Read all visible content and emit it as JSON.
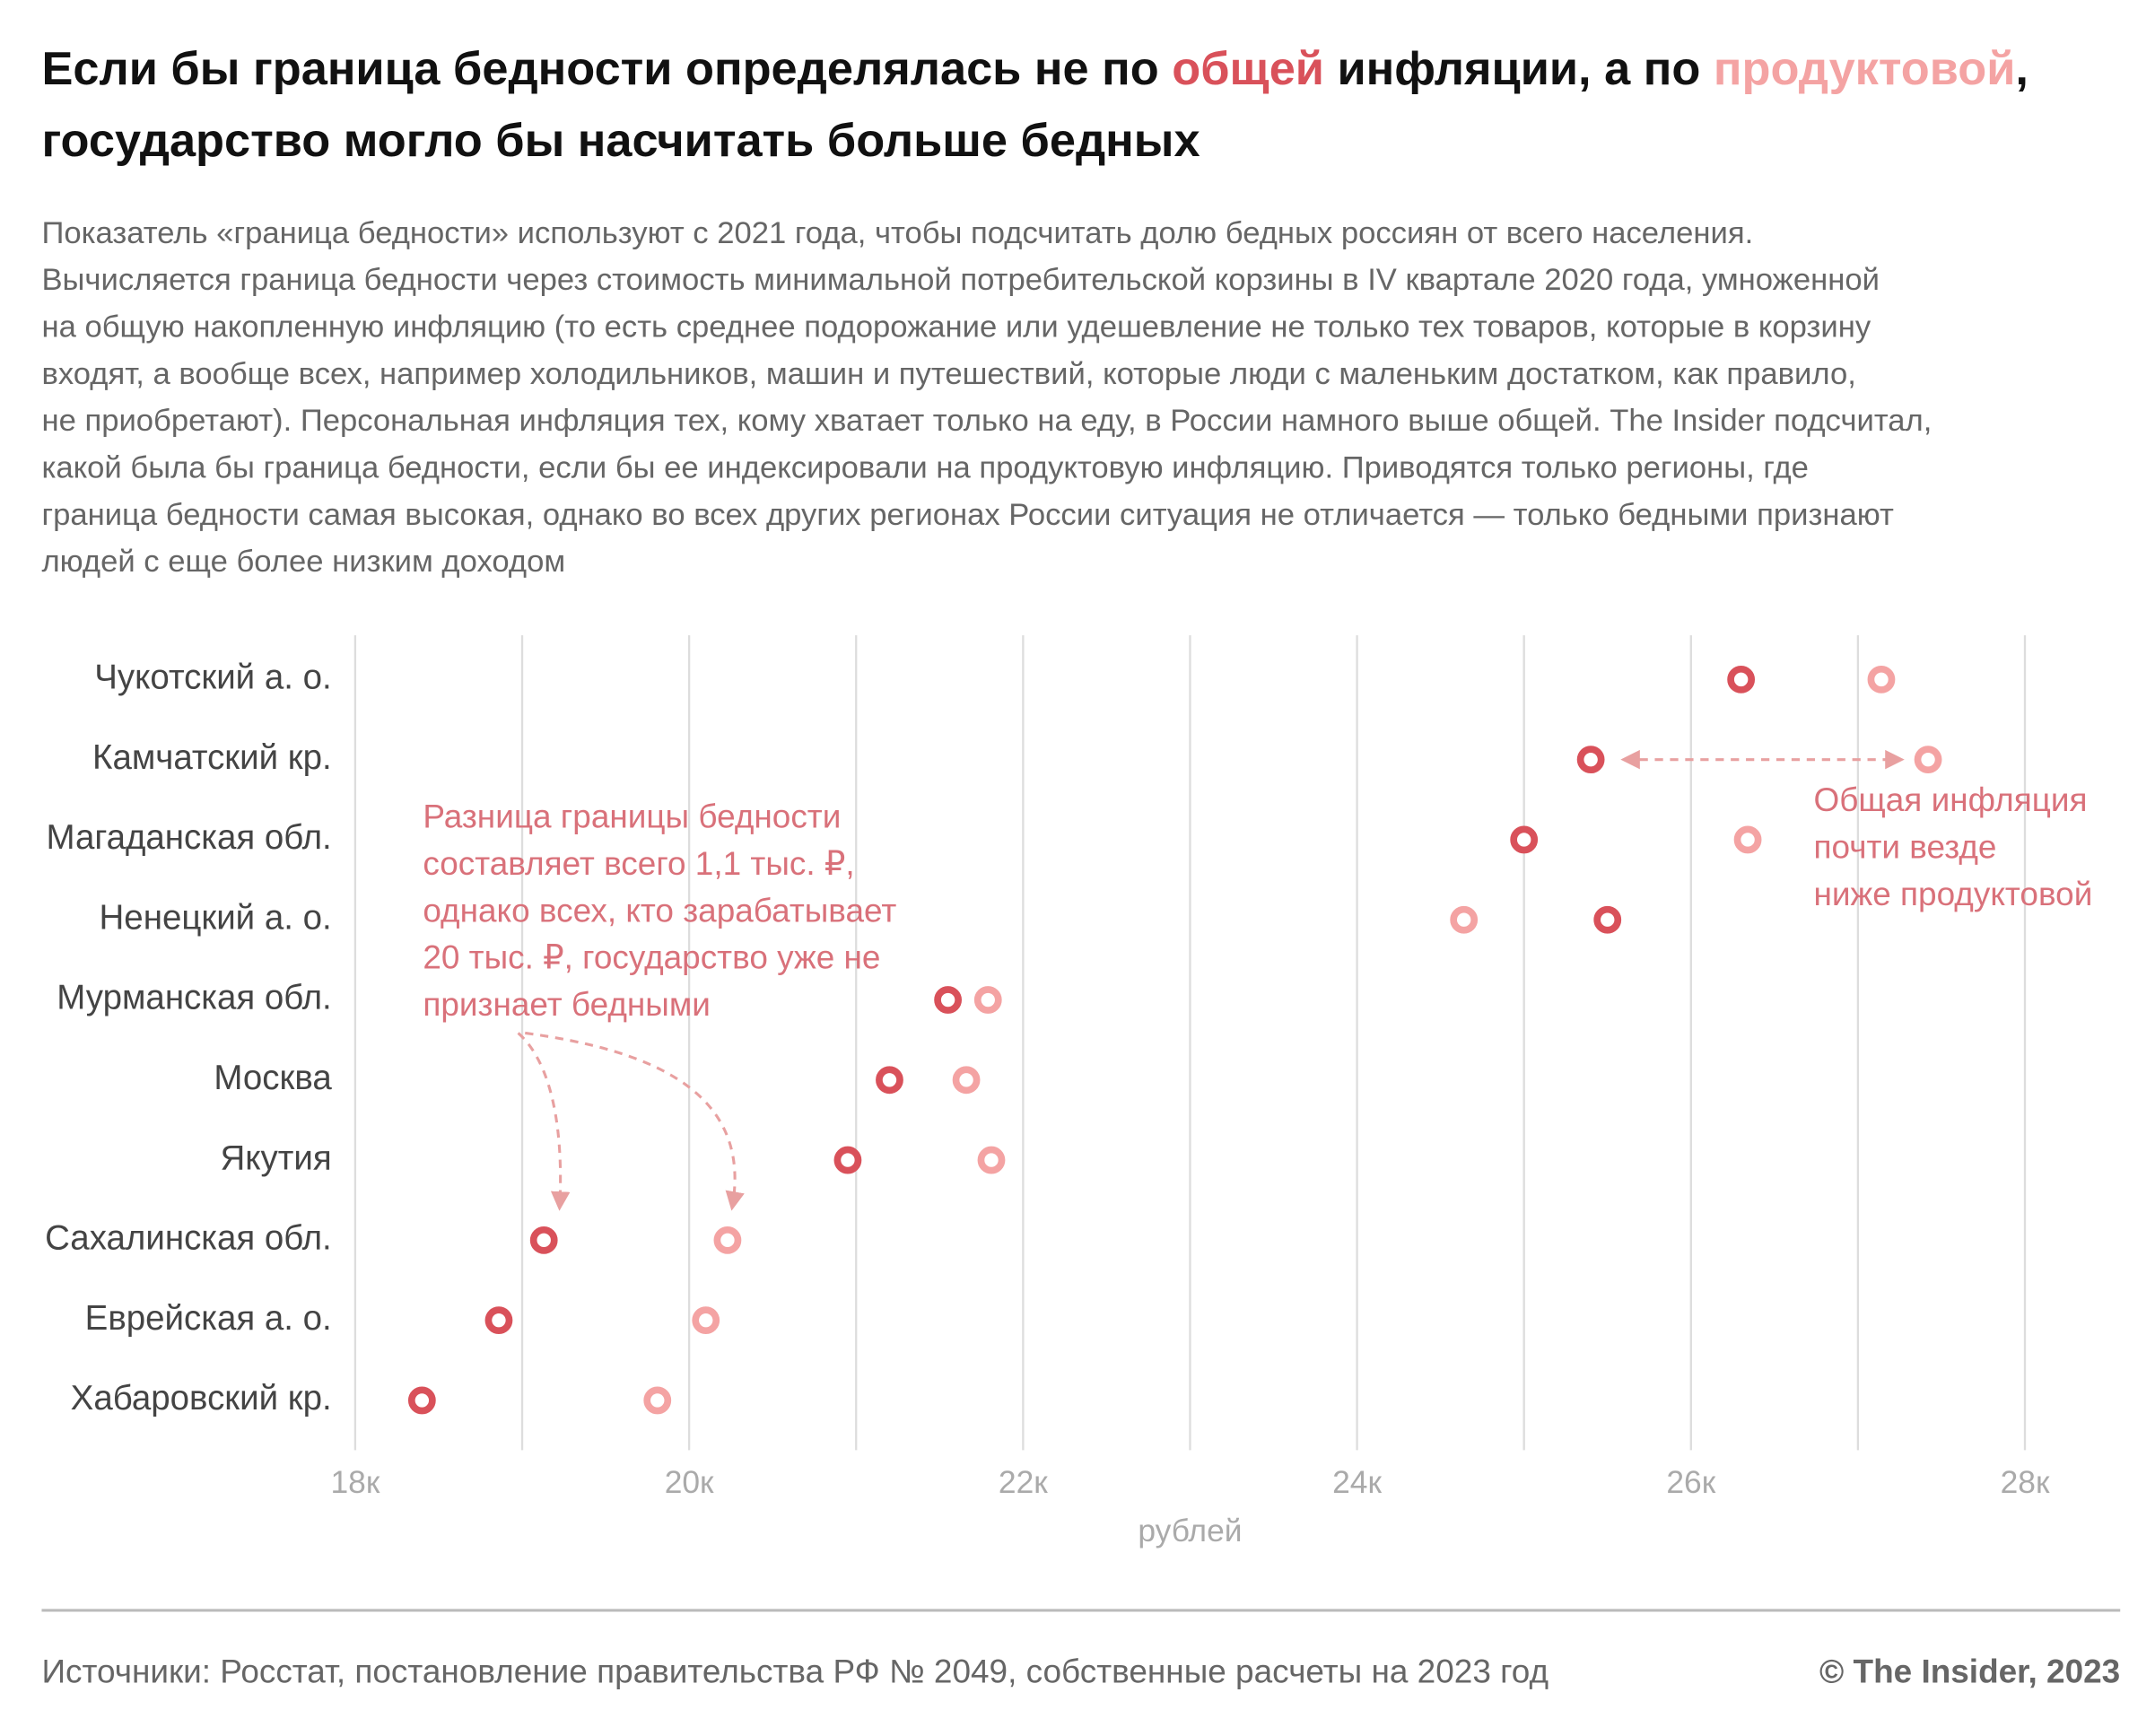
{
  "chart_data": {
    "type": "dot",
    "title_parts": [
      "Если бы граница бедности определялась не по ",
      " инфляции, а по ",
      ","
    ],
    "title_line2": "государство могло бы насчитать больше бедных",
    "subtitle_lines": [
      "Показатель «граница бедности» используют с 2021 года, чтобы подсчитать долю бедных россиян от всего населения.",
      "Вычисляется граница бедности через стоимость минимальной потребительской корзины в IV квартале 2020 года, умноженной",
      "на общую накопленную инфляцию (то есть среднее подорожание или удешевление не только тех товаров, которые в корзину",
      "входят, а вообще всех, например холодильников, машин и путешествий, которые люди с маленьким достатком, как правило,",
      "не приобретают). Персональная инфляция тех, кому хватает только на еду, в России намного выше общей. The Insider подсчитал,",
      "какой была бы граница бедности, если бы ее индексировали на продуктовую инфляцию. Приводятся только регионы, где",
      "граница бедности самая высокая, однако во всех других регионах России ситуация не отличается — только бедными признают",
      "людей с еще более низким доходом"
    ],
    "categories": [
      "Чукотский а. о.",
      "Камчатский кр.",
      "Магаданская обл.",
      "Ненецкий а. о.",
      "Мурманская обл.",
      "Москва",
      "Якутия",
      "Сахалинская обл.",
      "Еврейская а. о.",
      "Хабаровский кр."
    ],
    "series": [
      {
        "name": "общей",
        "color": "#d9515a",
        "values": [
          26300,
          25400,
          25000,
          25500,
          21550,
          21200,
          20950,
          19130,
          18860,
          18400
        ]
      },
      {
        "name": "продуктовой",
        "color": "#f4a3a3",
        "values": [
          27140,
          27420,
          26340,
          24640,
          21790,
          21660,
          21810,
          20230,
          20100,
          19810
        ]
      }
    ],
    "xlim": [
      18000,
      28000
    ],
    "xticks": [
      {
        "value": 18000,
        "label": "18к"
      },
      {
        "value": 20000,
        "label": "20к"
      },
      {
        "value": 22000,
        "label": "22к"
      },
      {
        "value": 24000,
        "label": "24к"
      },
      {
        "value": 26000,
        "label": "26к"
      },
      {
        "value": 28000,
        "label": "28к"
      }
    ],
    "minor_xticks": [
      19000,
      21000,
      23000,
      25000,
      27000
    ],
    "grid": true,
    "x_label": "рублей",
    "annotations": [
      {
        "lines": [
          "Разница границы бедности",
          "составляет всего 1,1 тыс. ₽,",
          "однако всех, кто зарабатывает",
          "20 тыс. ₽, государство уже не",
          "признает бедными"
        ]
      },
      {
        "lines": [
          "Общая инфляция",
          "почти везде",
          "ниже продуктовой"
        ]
      }
    ],
    "source": "Источники: Росстат, постановление правительства РФ № 2049, собственные расчеты на 2023 год",
    "credit": "© The Insider, 2023"
  }
}
